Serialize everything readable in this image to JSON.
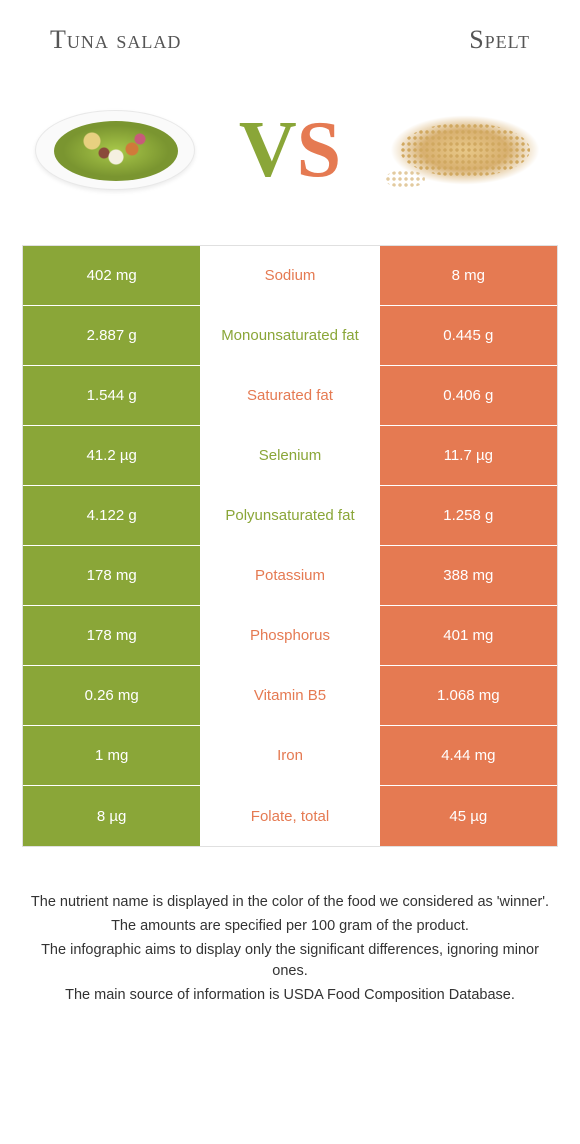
{
  "header": {
    "left": "Tuna salad",
    "right": "Spelt"
  },
  "vs": {
    "v": "V",
    "s": "S"
  },
  "colors": {
    "green": "#8aa638",
    "orange": "#e57a52",
    "text": "#333333",
    "bg": "#ffffff"
  },
  "rows": [
    {
      "left": "402 mg",
      "label": "Sodium",
      "winner": "orange",
      "right": "8 mg"
    },
    {
      "left": "2.887 g",
      "label": "Monounsaturated fat",
      "winner": "green",
      "right": "0.445 g"
    },
    {
      "left": "1.544 g",
      "label": "Saturated fat",
      "winner": "orange",
      "right": "0.406 g"
    },
    {
      "left": "41.2 µg",
      "label": "Selenium",
      "winner": "green",
      "right": "11.7 µg"
    },
    {
      "left": "4.122 g",
      "label": "Polyunsaturated fat",
      "winner": "green",
      "right": "1.258 g"
    },
    {
      "left": "178 mg",
      "label": "Potassium",
      "winner": "orange",
      "right": "388 mg"
    },
    {
      "left": "178 mg",
      "label": "Phosphorus",
      "winner": "orange",
      "right": "401 mg"
    },
    {
      "left": "0.26 mg",
      "label": "Vitamin B5",
      "winner": "orange",
      "right": "1.068 mg"
    },
    {
      "left": "1 mg",
      "label": "Iron",
      "winner": "orange",
      "right": "4.44 mg"
    },
    {
      "left": "8 µg",
      "label": "Folate, total",
      "winner": "orange",
      "right": "45 µg"
    }
  ],
  "notes": [
    "The nutrient name is displayed in the color of the food we considered as 'winner'.",
    "The amounts are specified per 100 gram of the product.",
    "The infographic aims to display only the significant differences, ignoring minor ones.",
    "The main source of information is USDA Food Composition Database."
  ]
}
